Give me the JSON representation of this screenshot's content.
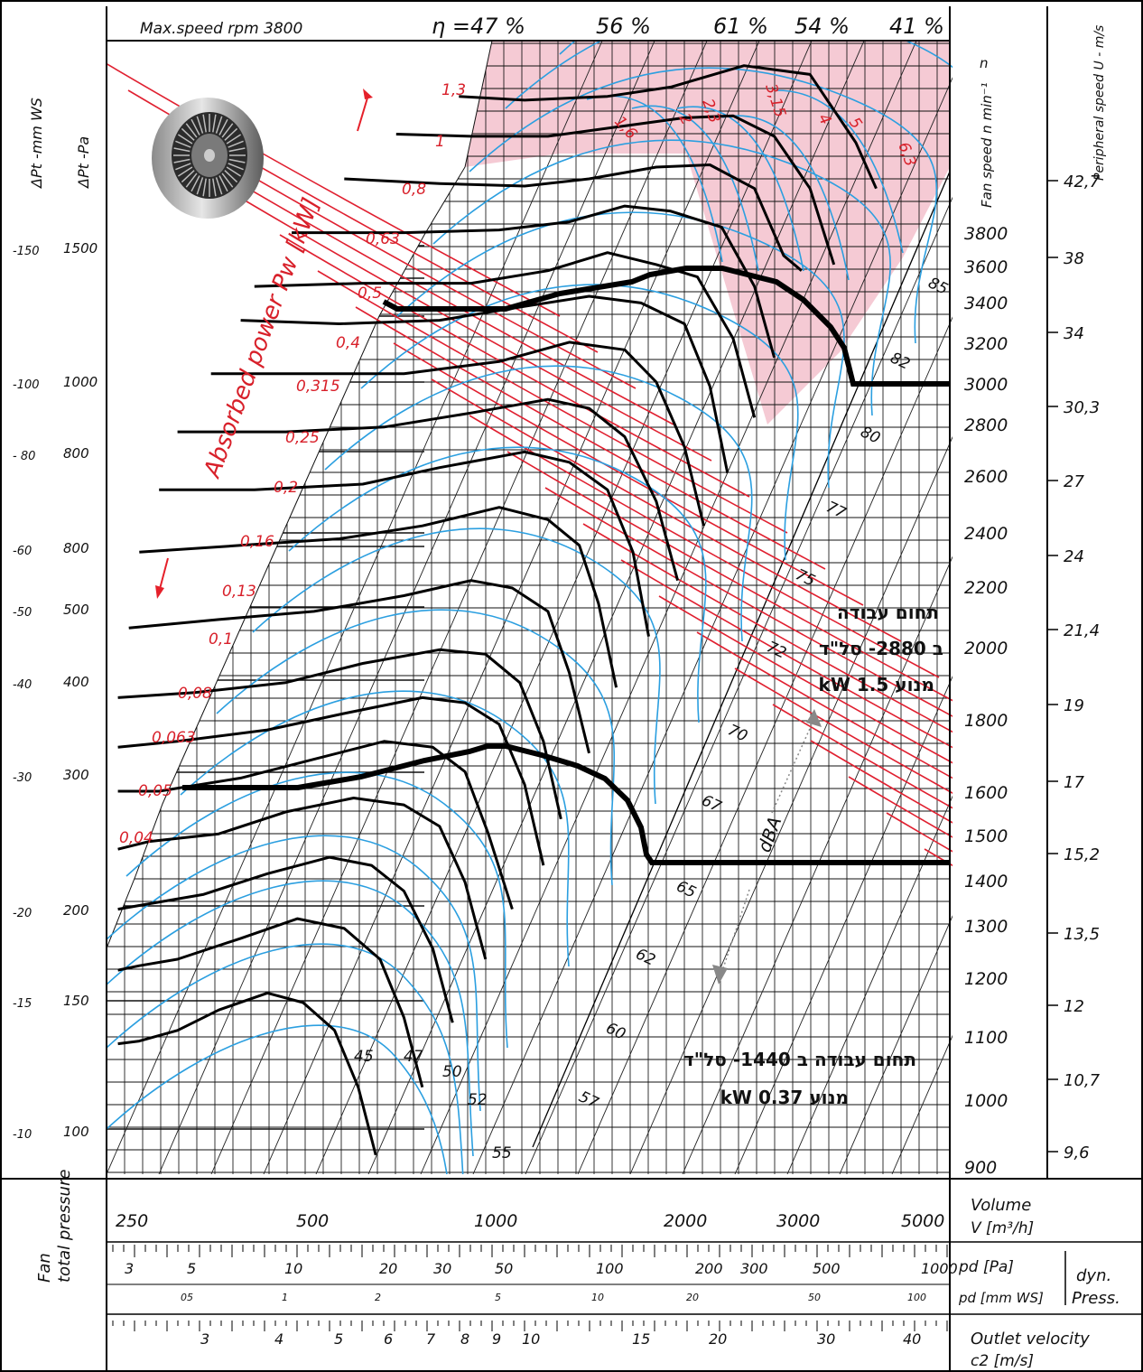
{
  "chart_data": {
    "type": "line",
    "title": "Max.speed rpm 3800",
    "xlabel": "Volume V [m³/h]",
    "ylabel": "Fan total pressure ΔPt - Pa",
    "x_scale": "log",
    "y_scale": "log",
    "xlim": [
      230,
      5400
    ],
    "ylim": [
      90,
      2200
    ],
    "x_ticks": [
      "250",
      "500",
      "1000",
      "2000",
      "3000",
      "5000"
    ],
    "y_ticks_pa": [
      "1500",
      "1000",
      "800",
      "800",
      "500",
      "400",
      "300",
      "200",
      "150",
      "100"
    ],
    "y_ticks_mmws": [
      "-150",
      "-100",
      "- 80",
      "-60",
      "-50",
      "-40",
      "-30",
      "-20",
      "-15",
      "-10"
    ],
    "y_left_labels": {
      "mmws": "ΔPt -mm WS",
      "pa": "ΔPt -Pa"
    },
    "efficiency_labels": [
      "η =47 %",
      "56 %",
      "61 %",
      "54 %",
      "41 %"
    ],
    "absorbed_power_label": "Absorbed power Pw [kW]",
    "absorbed_power_values": [
      "1,3",
      "1",
      "0,8",
      "0,63",
      "0,5",
      "0,4",
      "0,315",
      "0,25",
      "0,2",
      "0,16",
      "0,13",
      "0,1",
      "0,08",
      "0,063",
      "0,05",
      "0,04"
    ],
    "absorbed_power_upper": [
      "1,6",
      "2",
      "2,3",
      "3,15",
      "4",
      "5",
      "6,3"
    ],
    "fan_speed_label": "Fan speed n min⁻¹",
    "fan_speed_ticks": [
      "3800",
      "3600",
      "3400",
      "3200",
      "3000",
      "2800",
      "2600",
      "2400",
      "2200",
      "2000",
      "1800",
      "1600",
      "1500",
      "1400",
      "1300",
      "1200",
      "1100",
      "1000",
      "900"
    ],
    "peripheral_speed_label": "Peripheral speed U - m/s",
    "peripheral_speed_ticks": [
      "42,7",
      "38",
      "34",
      "30,3",
      "27",
      "24",
      "21,4",
      "19",
      "17",
      "15,2",
      "13,5",
      "12",
      "10,7",
      "9,6"
    ],
    "dba_label": "dBA",
    "dba_values": [
      "45",
      "47",
      "50",
      "52",
      "55",
      "57",
      "60",
      "62",
      "65",
      "67",
      "70",
      "72",
      "75",
      "77",
      "80",
      "82",
      "85"
    ],
    "bottom_scales": {
      "fan_total_pressure_label": "Fan total pressure",
      "pd_pa_label": "pd [Pa]",
      "pd_mmws_label": "pd [mm WS]",
      "dyn_press_label": "dyn. Press.",
      "pd_pa_ticks": [
        "3",
        "5",
        "10",
        "20",
        "30",
        "50",
        "100",
        "200",
        "300",
        "500",
        "1000"
      ],
      "pd_mmws_ticks": [
        "05",
        "1",
        "2",
        "5",
        "10",
        "20",
        "50",
        "100"
      ],
      "outlet_velocity_label": "Outlet velocity c2 [m/s]",
      "outlet_velocity_ticks": [
        "3",
        "4",
        "5",
        "6",
        "7",
        "8",
        "9",
        "10",
        "15",
        "20",
        "30",
        "40"
      ]
    },
    "operating_ranges": [
      {
        "label_line1": "תחום עבודה",
        "label_line2": "ב 2880- סל\"ד",
        "label_line3": "מנוע 1.5 kW",
        "rpm": 2880
      },
      {
        "label_line1": "תחום עבודה ב 1440- סל\"ד",
        "label_line2": "מנוע 0.37 kW",
        "rpm": 1440
      }
    ],
    "series": [
      {
        "name": "3800",
        "x": [
          860,
          1100,
          1500,
          1900,
          2500,
          3200,
          3800,
          4100
        ],
        "y": [
          1880,
          1860,
          1880,
          1930,
          2050,
          2000,
          1650,
          1450
        ]
      },
      {
        "name": "3600",
        "x": [
          680,
          900,
          1200,
          1600,
          2000,
          2400,
          2800,
          3200,
          3500
        ],
        "y": [
          1690,
          1680,
          1680,
          1730,
          1770,
          1780,
          1680,
          1450,
          1170
        ]
      },
      {
        "name": "3400",
        "x": [
          560,
          800,
          1100,
          1400,
          1800,
          2200,
          2600,
          2900,
          3100
        ],
        "y": [
          1490,
          1470,
          1460,
          1490,
          1540,
          1550,
          1450,
          1200,
          1150
        ]
      },
      {
        "name": "3200",
        "x": [
          460,
          700,
          1000,
          1300,
          1600,
          1900,
          2300,
          2600,
          2800
        ],
        "y": [
          1280,
          1280,
          1290,
          1320,
          1380,
          1360,
          1300,
          1100,
          900
        ]
      },
      {
        "name": "3000",
        "x": [
          400,
          600,
          900,
          1200,
          1500,
          1800,
          2100,
          2400,
          2600
        ],
        "y": [
          1100,
          1110,
          1110,
          1150,
          1210,
          1170,
          1130,
          950,
          760
        ]
      },
      {
        "name": "2800",
        "x": [
          380,
          550,
          800,
          1100,
          1400,
          1700,
          2000,
          2200,
          2350
        ],
        "y": [
          1000,
          990,
          1000,
          1040,
          1070,
          1050,
          990,
          830,
          650
        ]
      },
      {
        "name": "2600",
        "x": [
          340,
          500,
          700,
          1000,
          1300,
          1600,
          1800,
          2000,
          2150
        ],
        "y": [
          860,
          860,
          860,
          890,
          940,
          920,
          840,
          700,
          560
        ]
      },
      {
        "name": "2400",
        "x": [
          300,
          450,
          650,
          900,
          1200,
          1400,
          1600,
          1800,
          1950
        ],
        "y": [
          730,
          730,
          740,
          770,
          800,
          780,
          720,
          600,
          480
        ]
      },
      {
        "name": "2200",
        "x": [
          280,
          400,
          600,
          800,
          1100,
          1300,
          1500,
          1650,
          1750
        ],
        "y": [
          620,
          620,
          630,
          660,
          690,
          670,
          620,
          520,
          410
        ]
      },
      {
        "name": "2000",
        "x": [
          260,
          380,
          550,
          750,
          1000,
          1200,
          1350,
          1450,
          1550
        ],
        "y": [
          520,
          530,
          540,
          560,
          590,
          570,
          530,
          450,
          355
        ]
      },
      {
        "name": "1800",
        "x": [
          250,
          350,
          500,
          700,
          900,
          1050,
          1200,
          1300,
          1400
        ],
        "y": [
          420,
          430,
          440,
          460,
          480,
          470,
          440,
          370,
          295
        ]
      },
      {
        "name": "1600",
        "x": [
          240,
          320,
          450,
          600,
          800,
          950,
          1080,
          1180,
          1260
        ],
        "y": [
          345,
          350,
          360,
          380,
          395,
          390,
          360,
          305,
          245
        ]
      },
      {
        "name": "1500",
        "x": [
          240,
          300,
          420,
          560,
          750,
          880,
          1000,
          1100,
          1180
        ],
        "y": [
          300,
          305,
          315,
          330,
          345,
          340,
          320,
          270,
          215
        ]
      },
      {
        "name": "1400",
        "x": [
          240,
          280,
          380,
          500,
          650,
          780,
          880,
          960,
          1050
        ],
        "y": [
          265,
          265,
          275,
          290,
          305,
          300,
          280,
          235,
          190
        ]
      },
      {
        "name": "1300",
        "x": [
          240,
          270,
          350,
          450,
          580,
          700,
          800,
          880,
          950
        ],
        "y": [
          225,
          230,
          235,
          250,
          260,
          255,
          240,
          205,
          165
        ]
      },
      {
        "name": "1100",
        "x": [
          240,
          260,
          330,
          420,
          530,
          620,
          700,
          780,
          840
        ],
        "y": [
          190,
          192,
          198,
          210,
          220,
          215,
          200,
          170,
          138
        ]
      },
      {
        "name": "1000",
        "x": [
          240,
          260,
          300,
          380,
          470,
          560,
          640,
          700,
          750
        ],
        "y": [
          160,
          162,
          165,
          175,
          185,
          180,
          165,
          140,
          115
        ]
      },
      {
        "name": "900",
        "x": [
          240,
          260,
          300,
          350,
          420,
          480,
          540,
          590,
          630
        ],
        "y": [
          130,
          131,
          135,
          143,
          150,
          146,
          135,
          115,
          95
        ]
      }
    ]
  }
}
